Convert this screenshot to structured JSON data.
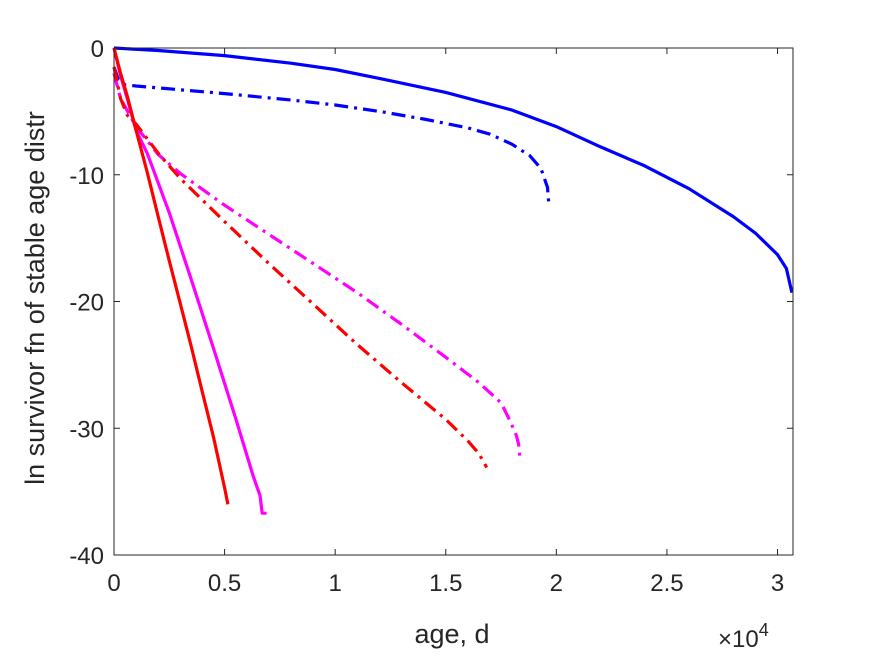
{
  "chart_data": {
    "type": "line",
    "xlabel": "age, d",
    "ylabel": "ln survivor fn of stable age distr",
    "x_multiplier_label": "×10",
    "x_multiplier_exponent": "4",
    "xlim": [
      0,
      30700
    ],
    "ylim": [
      -40,
      0
    ],
    "xticks": [
      0,
      5000,
      10000,
      15000,
      20000,
      25000,
      30000
    ],
    "xtick_labels": [
      "0",
      "0.5",
      "1",
      "1.5",
      "2",
      "2.5",
      "3"
    ],
    "yticks": [
      0,
      -10,
      -20,
      -30,
      -40
    ],
    "ytick_labels": [
      "0",
      "-10",
      "-20",
      "-30",
      "-40"
    ],
    "grid": false,
    "box": true,
    "series": [
      {
        "color": "#0000ff",
        "style": "solid",
        "x": [
          0,
          2000,
          5000,
          8000,
          10000,
          12000,
          15000,
          18000,
          20000,
          22000,
          24000,
          26000,
          28000,
          29000,
          30000,
          30400,
          30650
        ],
        "y": [
          0,
          -0.2,
          -0.6,
          -1.2,
          -1.7,
          -2.4,
          -3.5,
          -4.9,
          -6.2,
          -7.8,
          -9.3,
          -11.1,
          -13.3,
          -14.6,
          -16.3,
          -17.4,
          -19.3
        ]
      },
      {
        "color": "#0000ff",
        "style": "dashdot",
        "x": [
          0,
          200,
          500,
          1000,
          3000,
          5000,
          8000,
          10000,
          12000,
          14000,
          16000,
          17000,
          18000,
          18800,
          19300,
          19600,
          19650
        ],
        "y": [
          -1.5,
          -2.5,
          -2.9,
          -3.0,
          -3.3,
          -3.6,
          -4.1,
          -4.5,
          -5.0,
          -5.6,
          -6.3,
          -6.8,
          -7.6,
          -8.5,
          -9.5,
          -11.0,
          -12.1
        ]
      },
      {
        "color": "#ff00ff",
        "style": "dashdot",
        "x": [
          0,
          300,
          1000,
          2000,
          3000,
          5000,
          7000,
          9000,
          11000,
          13000,
          15000,
          16500,
          17500,
          17900,
          18200,
          18300,
          18350
        ],
        "y": [
          -2.0,
          -4.0,
          -6.2,
          -8.4,
          -9.9,
          -12.4,
          -14.7,
          -17.0,
          -19.3,
          -21.8,
          -24.4,
          -26.4,
          -28.0,
          -29.4,
          -30.6,
          -31.3,
          -32.4
        ]
      },
      {
        "color": "#ff0000",
        "style": "dashdot",
        "x": [
          0,
          300,
          600,
          1000,
          2000,
          3000,
          5000,
          7000,
          9000,
          11000,
          13000,
          15000,
          16000,
          16500,
          16850
        ],
        "y": [
          -1.5,
          -4.0,
          -5.3,
          -6.0,
          -8.3,
          -10.3,
          -13.7,
          -17.0,
          -20.2,
          -23.4,
          -26.4,
          -29.3,
          -31.0,
          -32.0,
          -33.1
        ]
      },
      {
        "color": "#ff00ff",
        "style": "solid",
        "x": [
          0,
          300,
          600,
          1000,
          1500,
          2500,
          3500,
          4500,
          5500,
          6300,
          6600,
          6700,
          6900
        ],
        "y": [
          0,
          -2.2,
          -4.0,
          -6.5,
          -8.3,
          -13.0,
          -18.3,
          -23.7,
          -29.2,
          -33.8,
          -35.3,
          -36.7,
          -36.7
        ]
      },
      {
        "color": "#ff0000",
        "style": "solid",
        "x": [
          0,
          300,
          600,
          1000,
          1500,
          2000,
          2500,
          3000,
          3500,
          4000,
          4500,
          5000,
          5150
        ],
        "y": [
          0,
          -2.0,
          -3.8,
          -6.5,
          -9.8,
          -13.3,
          -16.8,
          -20.2,
          -23.6,
          -27.2,
          -30.7,
          -34.7,
          -36.0
        ]
      }
    ]
  }
}
